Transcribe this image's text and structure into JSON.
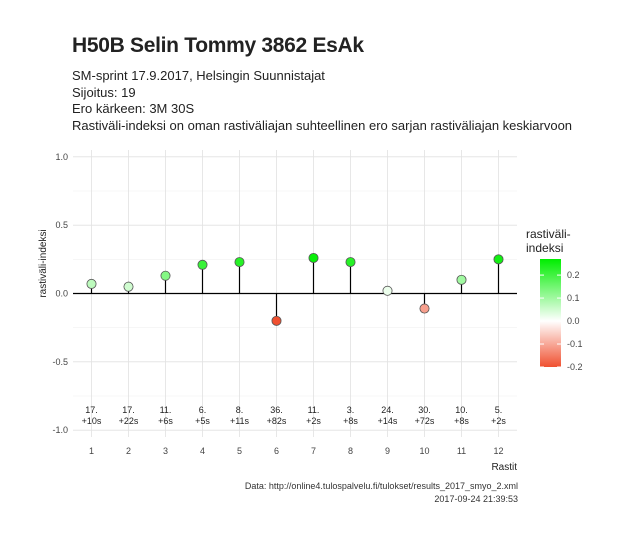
{
  "title": "H50B Selin Tommy 3862 EsAk",
  "subtitle_lines": [
    "SM-sprint 17.9.2017, Helsingin Suunnistajat",
    "Sijoitus: 19",
    "Ero kärkeen: 3M 30S",
    "Rastiväli-indeksi on oman rastiväliajan suhteellinen ero sarjan rastiväliajan keskiarvoon"
  ],
  "caption_lines": [
    "Data: http://online4.tulospalvelu.fi/tulokset/results_2017_smyo_2.xml",
    "2017-09-24 21:39:53"
  ],
  "chart_data": {
    "type": "lollipop",
    "xlabel": "Rastit",
    "ylabel": "rastiväli-indeksi",
    "ylim": [
      -1.05,
      1.05
    ],
    "yticks": [
      -1.0,
      -0.5,
      0.0,
      0.5,
      1.0
    ],
    "ytick_labels": [
      "-1.0",
      "-0.5",
      "0.0",
      "0.5",
      "1.0"
    ],
    "x": [
      1,
      2,
      3,
      4,
      5,
      6,
      7,
      8,
      9,
      10,
      11,
      12
    ],
    "values": [
      0.07,
      0.05,
      0.13,
      0.21,
      0.23,
      -0.2,
      0.26,
      0.23,
      0.02,
      -0.11,
      0.1,
      0.25
    ],
    "split_ranks": [
      "17.",
      "17.",
      "11.",
      "6.",
      "8.",
      "36.",
      "11.",
      "3.",
      "24.",
      "30.",
      "10.",
      "5."
    ],
    "split_diffs": [
      "+10s",
      "+22s",
      "+6s",
      "+5s",
      "+11s",
      "+82s",
      "+2s",
      "+8s",
      "+14s",
      "+72s",
      "+8s",
      "+2s"
    ],
    "legend": {
      "title_lines": [
        "rastiväli-",
        "indeksi"
      ],
      "ticks": [
        0.2,
        0.1,
        0.0,
        -0.1,
        -0.2
      ],
      "tick_labels": [
        "0.2",
        "0.1",
        "0.0",
        "-0.1",
        "-0.2"
      ],
      "range": [
        -0.2,
        0.27
      ],
      "colors": {
        "high": "#00ee00",
        "mid": "#ffffff",
        "low": "#f05030"
      }
    },
    "grid": true
  }
}
